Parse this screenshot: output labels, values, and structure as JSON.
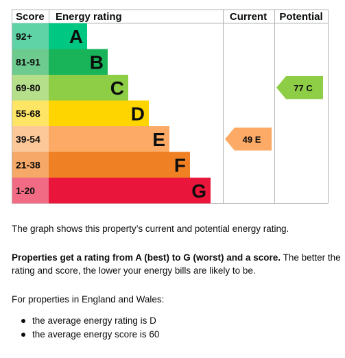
{
  "chart_data": {
    "type": "bar",
    "headers": {
      "score": "Score",
      "rating": "Energy rating",
      "current": "Current",
      "potential": "Potential"
    },
    "bands": [
      {
        "letter": "A",
        "range": "92+",
        "color": "#00c781",
        "score_color": "#5fd3a6"
      },
      {
        "letter": "B",
        "range": "81-91",
        "color": "#19b459",
        "score_color": "#6dcb8f"
      },
      {
        "letter": "C",
        "range": "69-80",
        "color": "#8dce46",
        "score_color": "#b5df8a"
      },
      {
        "letter": "D",
        "range": "55-68",
        "color": "#ffd500",
        "score_color": "#ffe566"
      },
      {
        "letter": "E",
        "range": "39-54",
        "color": "#fcaa65",
        "score_color": "#fdc899"
      },
      {
        "letter": "F",
        "range": "21-38",
        "color": "#ef8023",
        "score_color": "#f5a867"
      },
      {
        "letter": "G",
        "range": "1-20",
        "color": "#e9153b",
        "score_color": "#f06b83"
      }
    ],
    "current": {
      "score": 49,
      "letter": "E",
      "label": "49  E",
      "color": "#fcaa65"
    },
    "potential": {
      "score": 77,
      "letter": "C",
      "label": "77  C",
      "color": "#8dce46"
    }
  },
  "text": {
    "intro": "The graph shows this property’s current and potential energy rating.",
    "rating_bold": "Properties get a rating from A (best) to G (worst) and a score.",
    "rating_rest": " The better the rating and score, the lower your energy bills are likely to be.",
    "region": "For properties in England and Wales:",
    "bullets": [
      "the average energy rating is D",
      "the average energy score is 60"
    ]
  }
}
